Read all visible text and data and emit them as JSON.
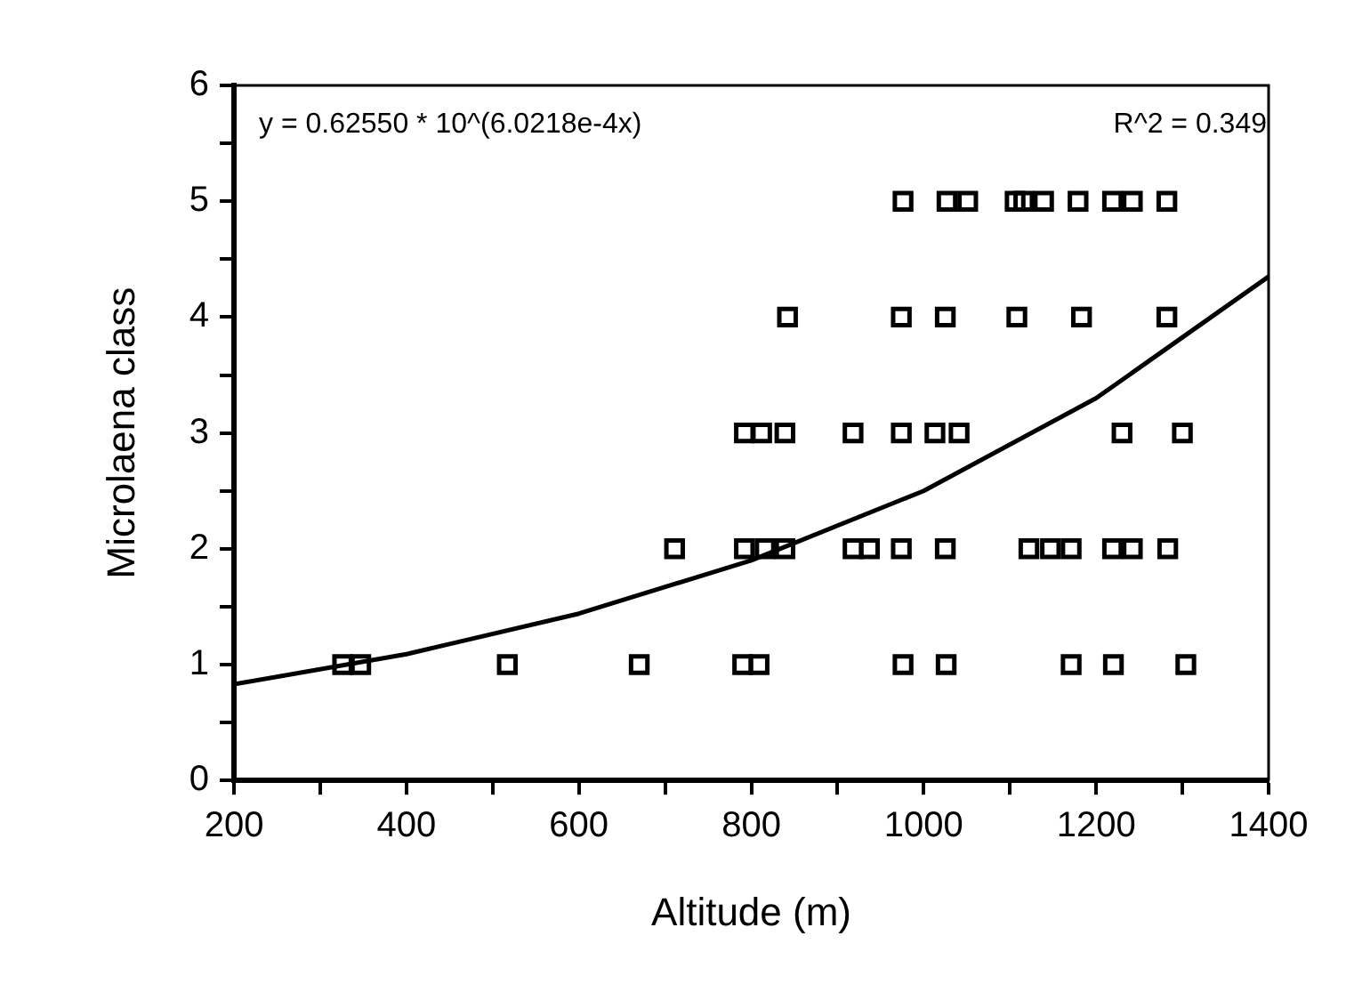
{
  "chart_data": {
    "type": "scatter",
    "xlabel": "Altitude (m)",
    "ylabel": "Microlaena class",
    "annotations": [
      "y = 0.62550 * 10^(6.0218e-4x)",
      "R^2 = 0.349"
    ],
    "xlim": [
      200,
      1400
    ],
    "ylim": [
      0,
      6
    ],
    "xticks": [
      200,
      {
        "value": 300,
        "label": null
      },
      400,
      {
        "value": 500,
        "label": null
      },
      600,
      {
        "value": 700,
        "label": null
      },
      800,
      {
        "value": 900,
        "label": null
      },
      1000,
      {
        "value": 1100,
        "label": null
      },
      1200,
      {
        "value": 1300,
        "label": null
      },
      1400
    ],
    "yticks": [
      0,
      {
        "value": 0.5,
        "label": null
      },
      1,
      {
        "value": 1.5,
        "label": null
      },
      2,
      {
        "value": 2.5,
        "label": null
      },
      3,
      {
        "value": 3.5,
        "label": null
      },
      4,
      {
        "value": 4.5,
        "label": null
      },
      5,
      {
        "value": 5.5,
        "label": null
      },
      6
    ],
    "grid": false,
    "legend": false,
    "marker": "square",
    "series": [
      {
        "color": "#000000",
        "x": [
          326,
          347,
          517,
          670,
          790,
          809,
          976,
          1026,
          1171,
          1220,
          1304,
          711,
          792,
          816,
          839,
          918,
          937,
          974,
          1025,
          1122,
          1147,
          1171,
          1219,
          1242,
          1283,
          792,
          812,
          839,
          918,
          974,
          1013,
          1041,
          1230,
          1300,
          842,
          974,
          1025,
          1108,
          1183,
          1282,
          976,
          1027,
          1051,
          1106,
          1116,
          1139,
          1179,
          1219,
          1242,
          1282
        ],
        "values": [
          1,
          1,
          1,
          1,
          1,
          1,
          1,
          1,
          1,
          1,
          1,
          2,
          2,
          2,
          2,
          2,
          2,
          2,
          2,
          2,
          2,
          2,
          2,
          2,
          2,
          3,
          3,
          3,
          3,
          3,
          3,
          3,
          3,
          3,
          4,
          4,
          4,
          4,
          4,
          4,
          5,
          5,
          5,
          5,
          5,
          5,
          5,
          5,
          5,
          5
        ]
      },
      {
        "type": "line",
        "color": "#000000",
        "marker": "none",
        "line_style": "solid",
        "x": [
          200,
          400,
          600,
          800,
          1000,
          1200,
          1400
        ],
        "values": [
          0.83,
          1.09,
          1.44,
          1.9,
          2.5,
          3.3,
          4.35
        ]
      }
    ]
  }
}
